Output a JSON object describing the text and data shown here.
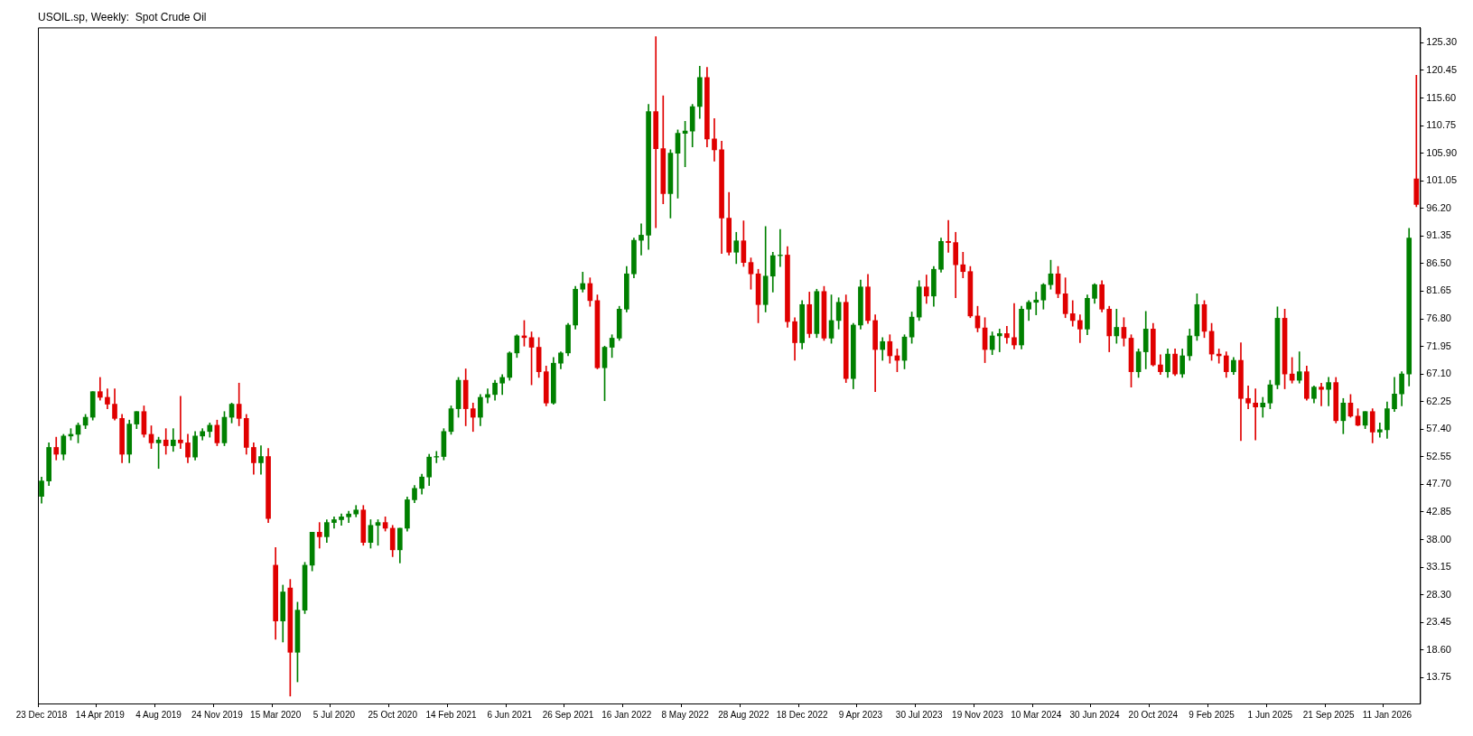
{
  "chart_data": {
    "type": "candlestick",
    "title": "USOIL.sp, Weekly:  Spot Crude Oil",
    "categories": [
      "23 Dec 2018",
      null,
      null,
      null,
      null,
      null,
      null,
      null,
      "14 Apr 2019",
      null,
      null,
      null,
      null,
      null,
      null,
      null,
      "4 Aug 2019",
      null,
      null,
      null,
      null,
      null,
      null,
      null,
      "24 Nov 2019",
      null,
      null,
      null,
      null,
      null,
      null,
      null,
      "15 Mar 2020",
      null,
      null,
      null,
      null,
      null,
      null,
      null,
      "5 Jul 2020",
      null,
      null,
      null,
      null,
      null,
      null,
      null,
      "25 Oct 2020",
      null,
      null,
      null,
      null,
      null,
      null,
      null,
      "14 Feb 2021",
      null,
      null,
      null,
      null,
      null,
      null,
      null,
      "6 Jun 2021",
      null,
      null,
      null,
      null,
      null,
      null,
      null,
      "26 Sep 2021",
      null,
      null,
      null,
      null,
      null,
      null,
      null,
      "16 Jan 2022",
      null,
      null,
      null,
      null,
      null,
      null,
      null,
      "8 May 2022",
      null,
      null,
      null,
      null,
      null,
      null,
      null,
      "28 Aug 2022",
      null,
      null,
      null,
      null,
      null,
      null,
      null,
      "18 Dec 2022",
      null,
      null,
      null,
      null,
      null,
      null,
      null,
      "9 Apr 2023",
      null,
      null,
      null,
      null,
      null,
      null,
      null,
      "30 Jul 2023",
      null,
      null,
      null,
      null,
      null,
      null,
      null,
      "19 Nov 2023",
      null,
      null,
      null,
      null,
      null,
      null,
      null,
      "10 Mar 2024",
      null,
      null,
      null,
      null,
      null,
      null,
      null,
      "30 Jun 2024",
      null,
      null,
      null,
      null,
      null,
      null,
      null,
      "20 Oct 2024",
      null,
      null,
      null,
      null,
      null,
      null,
      null,
      "9 Feb 2025",
      null,
      null,
      null,
      null,
      null,
      null,
      null,
      "1 Jun 2025",
      null,
      null,
      null,
      null,
      null,
      null,
      null,
      "21 Sep 2025",
      null,
      null,
      null,
      null,
      null,
      null,
      null,
      "11 Jan 2026",
      null,
      null,
      null,
      null
    ],
    "ohlc": [
      [
        45.6,
        49,
        44.4,
        48.3
      ],
      [
        48.3,
        55,
        47.5,
        54.2
      ],
      [
        54.2,
        56,
        52,
        53
      ],
      [
        53,
        56.5,
        52,
        56.2
      ],
      [
        56.2,
        57.5,
        55.5,
        56.5
      ],
      [
        56.5,
        58.5,
        55,
        58.1
      ],
      [
        58.1,
        60,
        57.5,
        59.5
      ],
      [
        59.5,
        64,
        59,
        64
      ],
      [
        64,
        66.5,
        62.5,
        63
      ],
      [
        63,
        64.5,
        61,
        61.8
      ],
      [
        61.8,
        64.5,
        59,
        59.3
      ],
      [
        59.3,
        60,
        51.5,
        53
      ],
      [
        53,
        59,
        51.5,
        58.3
      ],
      [
        58.3,
        60.5,
        57.5,
        60.5
      ],
      [
        60.5,
        61.5,
        56,
        56.5
      ],
      [
        56.5,
        58,
        54,
        55
      ],
      [
        55,
        56,
        50.5,
        55.5
      ],
      [
        55.5,
        57.5,
        53,
        54.5
      ],
      [
        54.5,
        57.5,
        53.5,
        55.5
      ],
      [
        55.5,
        63.2,
        54,
        55
      ],
      [
        55,
        56.5,
        51.5,
        52.5
      ],
      [
        52.5,
        57,
        52,
        56.2
      ],
      [
        56.2,
        57.5,
        55.5,
        57
      ],
      [
        57,
        58.5,
        56,
        58.1
      ],
      [
        58.1,
        59,
        54.5,
        55
      ],
      [
        55,
        60.5,
        54.5,
        59.5
      ],
      [
        59.5,
        62,
        58.5,
        61.8
      ],
      [
        61.8,
        65.5,
        58,
        59.3
      ],
      [
        59.3,
        60,
        53,
        54.2
      ],
      [
        54.2,
        55,
        49.5,
        51.5
      ],
      [
        51.5,
        54.5,
        49.5,
        52.6
      ],
      [
        52.6,
        54,
        41,
        41.7
      ],
      [
        33.5,
        36.6,
        20.5,
        23.7
      ],
      [
        23.7,
        30,
        20,
        28.8
      ],
      [
        29.5,
        31,
        10.5,
        18.2
      ],
      [
        18.2,
        27,
        13,
        25.6
      ],
      [
        25.6,
        34,
        25,
        33.5
      ],
      [
        33.5,
        39.3,
        32.5,
        39.3
      ],
      [
        39.3,
        41,
        36.5,
        38.5
      ],
      [
        38.5,
        41.5,
        37.5,
        41
      ],
      [
        41,
        42,
        40,
        41.5
      ],
      [
        41.5,
        42.5,
        40.5,
        42
      ],
      [
        42,
        43,
        41,
        42.5
      ],
      [
        42.5,
        44,
        42,
        43.2
      ],
      [
        43.2,
        44,
        37,
        37.5
      ],
      [
        37.5,
        41.5,
        36.5,
        40.5
      ],
      [
        40.5,
        41.5,
        37,
        41
      ],
      [
        41,
        42,
        39.5,
        40
      ],
      [
        40,
        40.5,
        35,
        36.2
      ],
      [
        36.2,
        40,
        33.9,
        40
      ],
      [
        40,
        45.5,
        39.5,
        45
      ],
      [
        45,
        47.5,
        44.5,
        47
      ],
      [
        47,
        49.5,
        46,
        49
      ],
      [
        49,
        53,
        47.5,
        52.5
      ],
      [
        52.5,
        53.5,
        51.5,
        52.6
      ],
      [
        52.6,
        57.5,
        52,
        57
      ],
      [
        57,
        61.5,
        56.5,
        61
      ],
      [
        61,
        66.5,
        59.5,
        66
      ],
      [
        66,
        68,
        58,
        61
      ],
      [
        61,
        62,
        57,
        59.5
      ],
      [
        59.5,
        63.5,
        58,
        63
      ],
      [
        63,
        64.5,
        62,
        63.5
      ],
      [
        63.5,
        66,
        62.5,
        65.5
      ],
      [
        65.5,
        67,
        63.5,
        66.5
      ],
      [
        66.5,
        71,
        66,
        70.8
      ],
      [
        70.8,
        74,
        70,
        73.8
      ],
      [
        73.8,
        76.5,
        72,
        73.5
      ],
      [
        73.5,
        74.5,
        65.2,
        71.8
      ],
      [
        71.8,
        73.5,
        66.5,
        67.5
      ],
      [
        67.5,
        68.5,
        61.5,
        62
      ],
      [
        62,
        70,
        61.8,
        69
      ],
      [
        69,
        71,
        68,
        70.8
      ],
      [
        70.8,
        76,
        70.3,
        75.7
      ],
      [
        75.7,
        82.5,
        75,
        82
      ],
      [
        82,
        85,
        81.5,
        83
      ],
      [
        83,
        84,
        79,
        80
      ],
      [
        80,
        81,
        68,
        68.2
      ],
      [
        68.2,
        72,
        62.4,
        71.8
      ],
      [
        71.8,
        74,
        70,
        73.4
      ],
      [
        73.4,
        79,
        73,
        78.5
      ],
      [
        78.5,
        86,
        78,
        84.7
      ],
      [
        84.7,
        91,
        84,
        90.6
      ],
      [
        90.6,
        93.5,
        88,
        91.5
      ],
      [
        91.5,
        114.5,
        89,
        113.2
      ],
      [
        113.2,
        126.4,
        92.8,
        106.7
      ],
      [
        106.7,
        116,
        97,
        98.8
      ],
      [
        98.8,
        106.5,
        94.5,
        105.9
      ],
      [
        105.9,
        110,
        98,
        109.4
      ],
      [
        109.4,
        111.5,
        103.5,
        109.8
      ],
      [
        109.8,
        114.5,
        107,
        114.1
      ],
      [
        114.1,
        121.2,
        112,
        119.2
      ],
      [
        119.2,
        121,
        107,
        108.4
      ],
      [
        108.4,
        112,
        104.5,
        106.5
      ],
      [
        106.5,
        108,
        88.3,
        94.5
      ],
      [
        94.5,
        99,
        88,
        88.5
      ],
      [
        88.5,
        92,
        86.5,
        90.5
      ],
      [
        90.5,
        94,
        86,
        86.7
      ],
      [
        86.7,
        87.5,
        82,
        84.7
      ],
      [
        84.7,
        85.5,
        76.1,
        79.3
      ],
      [
        79.3,
        93,
        78,
        84.3
      ],
      [
        84.3,
        88.5,
        81.5,
        87.9
      ],
      [
        87.9,
        92.5,
        86,
        88
      ],
      [
        88,
        89.5,
        75.3,
        76.3
      ],
      [
        76.3,
        77,
        69.5,
        72.6
      ],
      [
        72.6,
        80,
        71.5,
        79.3
      ],
      [
        79.3,
        81.5,
        73.5,
        74.2
      ],
      [
        74.2,
        82,
        73.5,
        81.6
      ],
      [
        81.6,
        82.5,
        73,
        73.4
      ],
      [
        73.4,
        81,
        72.5,
        76.5
      ],
      [
        76.5,
        80.5,
        75,
        79.7
      ],
      [
        79.7,
        81,
        65.6,
        66.3
      ],
      [
        66.3,
        76,
        64.5,
        75.7
      ],
      [
        75.7,
        83.6,
        75,
        82.4
      ],
      [
        82.4,
        84.6,
        76,
        76.5
      ],
      [
        76.5,
        77.5,
        64,
        71.4
      ],
      [
        71.4,
        73.5,
        69.5,
        72.8
      ],
      [
        72.8,
        74,
        69,
        70.3
      ],
      [
        70.3,
        71.5,
        67.5,
        69.5
      ],
      [
        69.5,
        74,
        68,
        73.6
      ],
      [
        73.6,
        78,
        72.5,
        77.1
      ],
      [
        77.1,
        83.5,
        76.5,
        82.4
      ],
      [
        82.4,
        84.5,
        79.5,
        80.8
      ],
      [
        80.8,
        86,
        79,
        85.5
      ],
      [
        85.5,
        91,
        85,
        90.4
      ],
      [
        90.4,
        94.1,
        88.5,
        90.2
      ],
      [
        90.2,
        92,
        80.5,
        86.3
      ],
      [
        86.3,
        88.5,
        84,
        85.1
      ],
      [
        85.1,
        86,
        77,
        77.3
      ],
      [
        77.3,
        79,
        74.5,
        75.2
      ],
      [
        75.2,
        77,
        69.1,
        71.4
      ],
      [
        71.4,
        74.5,
        70.5,
        73.8
      ],
      [
        73.8,
        75,
        71,
        74.2
      ],
      [
        74.2,
        75.5,
        72.5,
        73.5
      ],
      [
        73.5,
        79.5,
        71.5,
        72.2
      ],
      [
        72.2,
        79,
        71.5,
        78.5
      ],
      [
        78.5,
        80,
        76.5,
        79.7
      ],
      [
        79.7,
        81.5,
        77.5,
        80.1
      ],
      [
        80.1,
        83,
        78.5,
        82.8
      ],
      [
        82.8,
        87.1,
        82,
        84.7
      ],
      [
        84.7,
        86,
        80.5,
        81.2
      ],
      [
        81.2,
        84,
        77,
        77.7
      ],
      [
        77.7,
        80,
        75.5,
        76.5
      ],
      [
        76.5,
        77.5,
        72.6,
        75
      ],
      [
        75,
        81,
        74,
        80.4
      ],
      [
        80.4,
        83,
        79.5,
        82.8
      ],
      [
        82.8,
        83.5,
        78,
        78.5
      ],
      [
        78.5,
        79,
        71,
        73.8
      ],
      [
        73.8,
        78.5,
        72.5,
        75.3
      ],
      [
        75.3,
        77,
        72,
        73.4
      ],
      [
        73.4,
        74,
        64.8,
        67.5
      ],
      [
        67.5,
        71.5,
        66.5,
        71
      ],
      [
        71,
        78.1,
        68,
        75
      ],
      [
        75,
        76,
        68.5,
        68.7
      ],
      [
        68.7,
        70.5,
        67,
        67.5
      ],
      [
        67.5,
        71.5,
        66.5,
        70.6
      ],
      [
        70.6,
        71.5,
        66.8,
        67.1
      ],
      [
        67.1,
        71.5,
        66.5,
        70.3
      ],
      [
        70.3,
        75,
        69.5,
        73.8
      ],
      [
        73.8,
        81.2,
        73,
        79.3
      ],
      [
        79.3,
        80,
        73.5,
        74.6
      ],
      [
        74.6,
        76,
        69.5,
        70.6
      ],
      [
        70.6,
        71.5,
        69,
        70.3
      ],
      [
        70.3,
        71,
        66.5,
        67.5
      ],
      [
        67.5,
        70,
        67,
        69.5
      ],
      [
        69.5,
        72.6,
        55.4,
        62.8
      ],
      [
        62.8,
        65,
        61,
        62
      ],
      [
        62,
        64.5,
        55.5,
        61.3
      ],
      [
        61.3,
        63,
        59.5,
        62
      ],
      [
        62,
        66,
        61,
        65.2
      ],
      [
        65.2,
        78.9,
        64.5,
        76.9
      ],
      [
        76.9,
        78.5,
        64.5,
        67.1
      ],
      [
        67.1,
        70,
        65.5,
        66
      ],
      [
        66,
        71,
        65.5,
        67.5
      ],
      [
        67.5,
        68.5,
        62.5,
        62.8
      ],
      [
        62.8,
        65,
        62,
        64.8
      ],
      [
        64.8,
        65.5,
        61.5,
        64.4
      ],
      [
        64.4,
        66.5,
        61.5,
        65.6
      ],
      [
        65.6,
        66.5,
        58.5,
        58.9
      ],
      [
        58.9,
        62.8,
        56.6,
        62
      ],
      [
        62,
        63.5,
        59.5,
        59.7
      ],
      [
        59.7,
        61,
        58,
        58.1
      ],
      [
        58.1,
        60.5,
        57.5,
        60.5
      ],
      [
        60.5,
        61,
        55,
        56.9
      ],
      [
        56.9,
        58.5,
        56,
        57.3
      ],
      [
        57.3,
        62.2,
        55.8,
        61
      ],
      [
        61,
        66.5,
        60.5,
        63.6
      ],
      [
        63.6,
        67.5,
        61.5,
        67.1
      ],
      [
        67.1,
        92.7,
        65,
        91
      ],
      [
        101.4,
        119.6,
        96.5,
        96.9
      ]
    ],
    "colors": [
      "#008000",
      "#008000",
      "#e00000",
      "#008000",
      "#008000",
      "#008000",
      "#008000",
      "#008000",
      "#e00000",
      "#e00000",
      "#e00000",
      "#e00000",
      "#008000",
      "#008000",
      "#e00000",
      "#e00000",
      "#008000",
      "#e00000",
      "#008000",
      "#e00000",
      "#e00000",
      "#008000",
      "#008000",
      "#008000",
      "#e00000",
      "#008000",
      "#008000",
      "#e00000",
      "#e00000",
      "#e00000",
      "#008000",
      "#e00000",
      "#e00000",
      "#008000",
      "#e00000",
      "#008000",
      "#008000",
      "#008000",
      "#e00000",
      "#008000",
      "#008000",
      "#008000",
      "#008000",
      "#008000",
      "#e00000",
      "#008000",
      "#008000",
      "#e00000",
      "#e00000",
      "#008000",
      "#008000",
      "#008000",
      "#008000",
      "#008000",
      "#008000",
      "#008000",
      "#008000",
      "#008000",
      "#e00000",
      "#e00000",
      "#008000",
      "#008000",
      "#008000",
      "#008000",
      "#008000",
      "#008000",
      "#e00000",
      "#e00000",
      "#e00000",
      "#e00000",
      "#008000",
      "#008000",
      "#008000",
      "#008000",
      "#008000",
      "#e00000",
      "#e00000",
      "#008000",
      "#008000",
      "#008000",
      "#008000",
      "#008000",
      "#008000",
      "#008000",
      "#e00000",
      "#e00000",
      "#008000",
      "#008000",
      "#008000",
      "#008000",
      "#008000",
      "#e00000",
      "#e00000",
      "#e00000",
      "#e00000",
      "#008000",
      "#e00000",
      "#e00000",
      "#e00000",
      "#008000",
      "#008000",
      "#008000",
      "#e00000",
      "#e00000",
      "#008000",
      "#e00000",
      "#008000",
      "#e00000",
      "#008000",
      "#008000",
      "#e00000",
      "#008000",
      "#008000",
      "#e00000",
      "#e00000",
      "#008000",
      "#e00000",
      "#e00000",
      "#008000",
      "#008000",
      "#008000",
      "#e00000",
      "#008000",
      "#008000",
      "#e00000",
      "#e00000",
      "#e00000",
      "#e00000",
      "#e00000",
      "#e00000",
      "#008000",
      "#008000",
      "#e00000",
      "#e00000",
      "#008000",
      "#008000",
      "#008000",
      "#008000",
      "#008000",
      "#e00000",
      "#e00000",
      "#e00000",
      "#e00000",
      "#008000",
      "#008000",
      "#e00000",
      "#e00000",
      "#008000",
      "#e00000",
      "#e00000",
      "#008000",
      "#008000",
      "#e00000",
      "#e00000",
      "#008000",
      "#e00000",
      "#008000",
      "#008000",
      "#008000",
      "#e00000",
      "#e00000",
      "#e00000",
      "#e00000",
      "#008000",
      "#e00000",
      "#e00000",
      "#e00000",
      "#008000",
      "#008000",
      "#008000",
      "#e00000",
      "#e00000",
      "#008000",
      "#e00000",
      "#008000",
      "#e00000",
      "#008000",
      "#e00000",
      "#008000",
      "#e00000",
      "#e00000",
      "#008000",
      "#e00000",
      "#008000",
      "#008000",
      "#008000",
      "#008000",
      "#008000",
      "#e00000"
    ],
    "ylim": [
      9.2,
      128
    ],
    "yticks": [
      {
        "value": 13.75,
        "label": "13.75"
      },
      {
        "value": 18.6,
        "label": "18.60"
      },
      {
        "value": 23.45,
        "label": "23.45"
      },
      {
        "value": 28.3,
        "label": "28.30"
      },
      {
        "value": 33.15,
        "label": "33.15"
      },
      {
        "value": 38,
        "label": "38.00"
      },
      {
        "value": 42.85,
        "label": "42.85"
      },
      {
        "value": 47.7,
        "label": "47.70"
      },
      {
        "value": 52.55,
        "label": "52.55"
      },
      {
        "value": 57.4,
        "label": "57.40"
      },
      {
        "value": 62.25,
        "label": "62.25"
      },
      {
        "value": 67.1,
        "label": "67.10"
      },
      {
        "value": 71.95,
        "label": "71.95"
      },
      {
        "value": 76.8,
        "label": "76.80"
      },
      {
        "value": 81.65,
        "label": "81.65"
      },
      {
        "value": 86.5,
        "label": "86.50"
      },
      {
        "value": 91.35,
        "label": "91.35"
      },
      {
        "value": 96.2,
        "label": "96.20"
      },
      {
        "value": 101.05,
        "label": "101.05"
      },
      {
        "value": 105.9,
        "label": "105.90"
      },
      {
        "value": 110.75,
        "label": "110.75"
      },
      {
        "value": 115.6,
        "label": "115.60"
      },
      {
        "value": 120.45,
        "label": "120.45"
      },
      {
        "value": 125.3,
        "label": "125.30"
      }
    ]
  }
}
